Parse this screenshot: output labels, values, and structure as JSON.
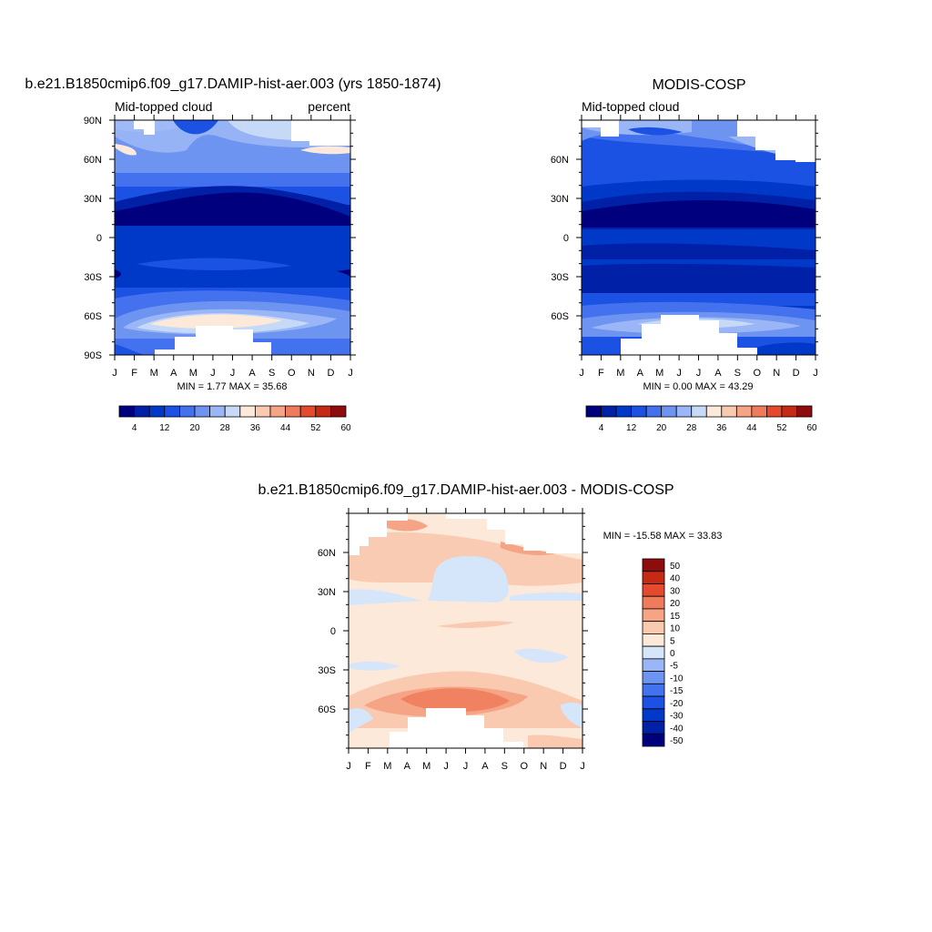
{
  "colors": {
    "seq": [
      "#00007f",
      "#0020a8",
      "#0038c8",
      "#1c52e4",
      "#4472ee",
      "#6e94f2",
      "#9ab6f6",
      "#c6daf8",
      "#fde9d9",
      "#f9c9b0",
      "#f5a585",
      "#ee7b5c",
      "#e64a2e",
      "#c42a14",
      "#8f0c0c"
    ],
    "div": [
      "#00007f",
      "#0020a8",
      "#0038c8",
      "#1c52e4",
      "#4472ee",
      "#6e94f2",
      "#9ab6f6",
      "#d6e6fa",
      "#fde9d9",
      "#f9c9b0",
      "#f5a585",
      "#ee7b5c",
      "#e64a2e",
      "#c42a14",
      "#8f0c0c"
    ]
  },
  "chart_data": [
    {
      "type": "heatmap",
      "title": "b.e21.B1850cmip6.f09_g17.DAMIP-hist-aer.003 (yrs 1850-1874)",
      "left_label": "Mid-topped cloud",
      "right_label": "percent",
      "x_ticks": [
        "J",
        "F",
        "M",
        "A",
        "M",
        "J",
        "J",
        "A",
        "S",
        "O",
        "N",
        "D",
        "J"
      ],
      "y_ticks": [
        "90N",
        "60N",
        "30N",
        "0",
        "30S",
        "60S",
        "90S"
      ],
      "min_text": "MIN =   1.77 MAX =  35.68",
      "colorbar_labels": [
        "4",
        "12",
        "20",
        "28",
        "36",
        "44",
        "52",
        "60"
      ],
      "levels": [
        4,
        8,
        12,
        16,
        20,
        24,
        28,
        32,
        36,
        40,
        44,
        48,
        52,
        56
      ],
      "grid": false,
      "legend": "bottom"
    },
    {
      "type": "heatmap",
      "title": "MODIS-COSP",
      "left_label": "Mid-topped cloud",
      "right_label": "",
      "x_ticks": [
        "J",
        "F",
        "M",
        "A",
        "M",
        "J",
        "J",
        "A",
        "S",
        "O",
        "N",
        "D",
        "J"
      ],
      "y_ticks": [
        "60N",
        "30N",
        "0",
        "30S",
        "60S"
      ],
      "min_text": "MIN =   0.00 MAX =  43.29",
      "colorbar_labels": [
        "4",
        "12",
        "20",
        "28",
        "36",
        "44",
        "52",
        "60"
      ],
      "levels": [
        4,
        8,
        12,
        16,
        20,
        24,
        28,
        32,
        36,
        40,
        44,
        48,
        52,
        56
      ],
      "grid": false,
      "legend": "bottom"
    },
    {
      "type": "heatmap",
      "title": "b.e21.B1850cmip6.f09_g17.DAMIP-hist-aer.003 - MODIS-COSP",
      "x_ticks": [
        "J",
        "F",
        "M",
        "A",
        "M",
        "J",
        "J",
        "A",
        "S",
        "O",
        "N",
        "D",
        "J"
      ],
      "y_ticks": [
        "60N",
        "30N",
        "0",
        "30S",
        "60S"
      ],
      "min_text": "MIN = -15.58 MAX =  33.83",
      "colorbar_labels": [
        "50",
        "40",
        "30",
        "20",
        "15",
        "10",
        "5",
        "0",
        "-5",
        "-10",
        "-15",
        "-20",
        "-30",
        "-40",
        "-50"
      ],
      "levels": [
        -50,
        -40,
        -30,
        -20,
        -15,
        -10,
        -5,
        0,
        5,
        10,
        15,
        20,
        30,
        40,
        50
      ],
      "grid": false,
      "legend": "right"
    }
  ]
}
